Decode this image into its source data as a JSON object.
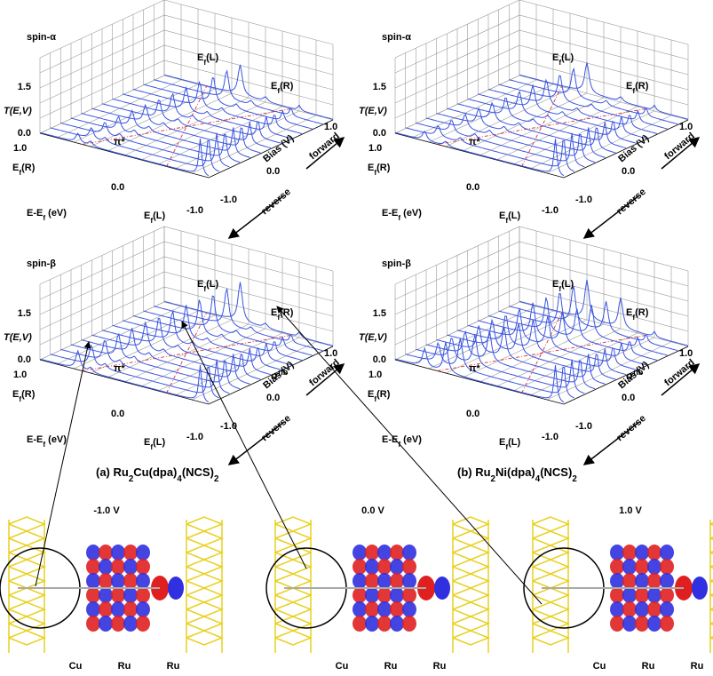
{
  "panels": [
    {
      "title": "spin-α",
      "t_ticks": [
        "1.5",
        "0.0"
      ],
      "t_label": "T(E,V)",
      "e_ticks": [
        "1.0",
        "0.0",
        "-1.0"
      ],
      "e_label": [
        "E-E",
        "f",
        " (eV)"
      ],
      "ef_r": [
        "E",
        "f",
        "(R)"
      ],
      "ef_l": [
        "E",
        "f",
        "(L)"
      ],
      "bias_label": "Bias (V)",
      "bias_ticks": [
        "-1.0",
        "0.0",
        "1.0"
      ],
      "forward": "forward",
      "reverse": "reverse",
      "top_ef_l": [
        "E",
        "f",
        "(L)"
      ],
      "top_ef_r": [
        "E",
        "f",
        "(R)"
      ],
      "pi": "π*"
    },
    {
      "title": "spin-α",
      "t_ticks": [
        "1.5",
        "0.0"
      ],
      "t_label": "T(E,V)",
      "e_ticks": [
        "1.0",
        "0.0",
        "-1.0"
      ],
      "e_label": [
        "E-E",
        "f",
        " (eV)"
      ],
      "ef_r": [
        "E",
        "f",
        "(R)"
      ],
      "ef_l": [
        "E",
        "f",
        "(L)"
      ],
      "bias_label": "Bias (V)",
      "bias_ticks": [
        "-1.0",
        "0.0",
        "1.0"
      ],
      "forward": "forward",
      "reverse": "reverse",
      "top_ef_l": [
        "E",
        "f",
        "(L)"
      ],
      "top_ef_r": [
        "E",
        "f",
        "(R)"
      ],
      "pi": "π*"
    },
    {
      "title": "spin-β",
      "t_ticks": [
        "1.5",
        "0.0"
      ],
      "t_label": "T(E,V)",
      "e_ticks": [
        "1.0",
        "0.0",
        "-1.0"
      ],
      "e_label": [
        "E-E",
        "f",
        " (eV)"
      ],
      "ef_r": [
        "E",
        "f",
        "(R)"
      ],
      "ef_l": [
        "E",
        "f",
        "(L)"
      ],
      "bias_label": "Bias (V)",
      "bias_ticks": [
        "-1.0",
        "0.0",
        "1.0"
      ],
      "forward": "forward",
      "reverse": "reverse",
      "top_ef_l": [
        "E",
        "f",
        "(L)"
      ],
      "top_ef_r": [
        "E",
        "f",
        "(R)"
      ],
      "pi": "π*",
      "sigma": [
        "σ",
        "nb"
      ]
    },
    {
      "title": "spin-β",
      "t_ticks": [
        "1.5",
        "0.0"
      ],
      "t_label": "T(E,V)",
      "e_ticks": [
        "1.0",
        "0.0",
        "-1.0"
      ],
      "e_label": [
        "E-E",
        "f",
        " (eV)"
      ],
      "ef_r": [
        "E",
        "f",
        "(R)"
      ],
      "ef_l": [
        "E",
        "f",
        "(L)"
      ],
      "bias_label": "Bias (V)",
      "bias_ticks": [
        "-1.0",
        "0.0",
        "1.0"
      ],
      "forward": "forward",
      "reverse": "reverse",
      "top_ef_l": [
        "E",
        "f",
        "(L)"
      ],
      "top_ef_r": [
        "E",
        "f",
        "(R)"
      ],
      "pi": "π*",
      "sigma": [
        "σ",
        "nb"
      ]
    }
  ],
  "captions": [
    [
      "(a) Ru",
      "2",
      "Cu(dpa)",
      "4",
      "(NCS)",
      "2"
    ],
    [
      "(b) Ru",
      "2",
      "Ni(dpa)",
      "4",
      "(NCS)",
      "2"
    ]
  ],
  "molecules": [
    {
      "bias": "-1.0 V",
      "atoms": [
        "Cu",
        "Ru",
        "Ru"
      ]
    },
    {
      "bias": "0.0 V",
      "atoms": [
        "Cu",
        "Ru",
        "Ru"
      ]
    },
    {
      "bias": "1.0 V",
      "atoms": [
        "Cu",
        "Ru",
        "Ru"
      ]
    }
  ]
}
